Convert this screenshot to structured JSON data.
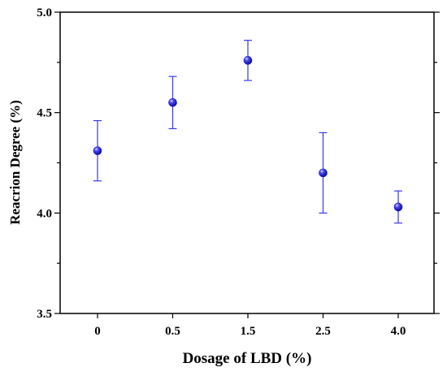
{
  "chart_data": {
    "type": "scatter",
    "categories": [
      "0",
      "0.5",
      "1.5",
      "2.5",
      "4.0"
    ],
    "values": [
      4.31,
      4.55,
      4.76,
      4.2,
      4.03
    ],
    "error_low": [
      4.16,
      4.42,
      4.66,
      4.0,
      3.95
    ],
    "error_high": [
      4.46,
      4.68,
      4.86,
      4.4,
      4.11
    ],
    "xlabel": "Dosage of LBD (%)",
    "ylabel": "Reacrion Degree (%)",
    "ylim": [
      3.5,
      5.0
    ],
    "yticks": [
      "3.5",
      "4.0",
      "4.5",
      "5.0"
    ],
    "grid": false,
    "marker_color": "#1a1adc",
    "errorbar_color": "#3a3ae6"
  }
}
